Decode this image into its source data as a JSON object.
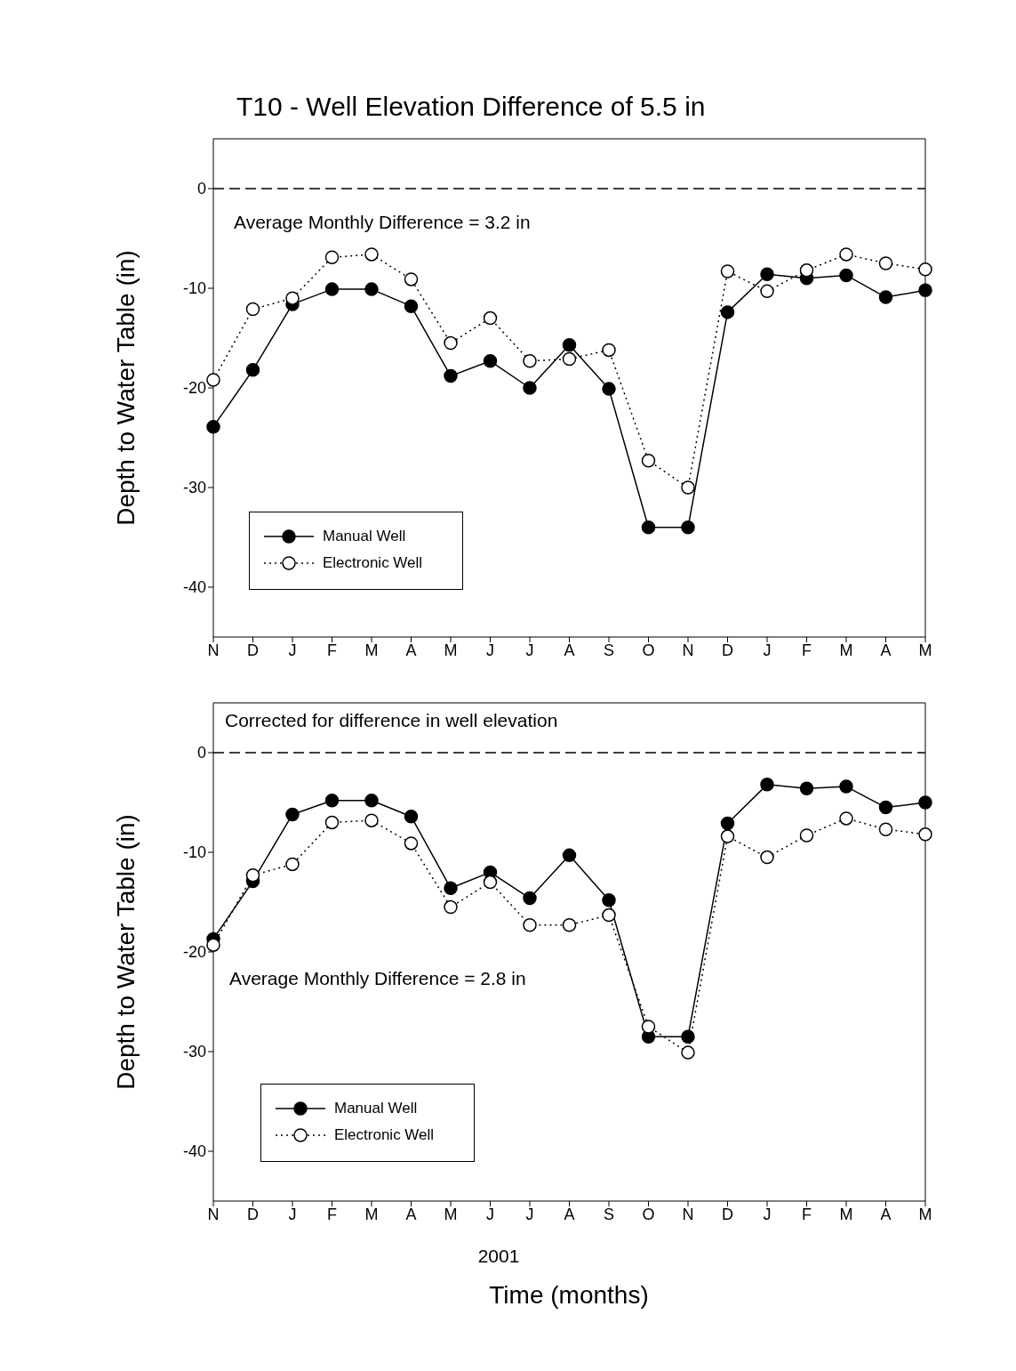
{
  "chart_data": [
    {
      "type": "line",
      "title": "T10 - Well Elevation Difference of 5.5 in",
      "ylabel": "Depth to Water Table (in)",
      "categories": [
        "N",
        "D",
        "J",
        "F",
        "M",
        "A",
        "M",
        "J",
        "J",
        "A",
        "S",
        "O",
        "N",
        "D",
        "J",
        "F",
        "M",
        "A",
        "M"
      ],
      "series": [
        {
          "name": "Manual Well",
          "color": "#000000",
          "line_style": "solid",
          "values": [
            -23.9,
            -18.2,
            -11.6,
            -10.1,
            -10.1,
            -11.8,
            -18.8,
            -17.3,
            -20.0,
            -15.7,
            -20.1,
            -34,
            -34,
            -12.4,
            -8.6,
            -9.0,
            -8.7,
            -10.9,
            -10.2
          ]
        },
        {
          "name": "Electronic Well",
          "color": "#000000",
          "line_style": "dotted",
          "values": [
            -19.2,
            -12.1,
            -11.0,
            -6.9,
            -6.6,
            -9.1,
            -15.5,
            -13.0,
            -17.3,
            -17.1,
            -16.2,
            -27.3,
            -30.0,
            -8.3,
            -10.3,
            -8.2,
            -6.6,
            -7.5,
            -8.1
          ]
        }
      ],
      "ylim": [
        -45,
        5
      ],
      "yticks": [
        0,
        -10,
        -20,
        -30,
        -40
      ],
      "grid": false,
      "legend": "bottom left",
      "marker": "circle",
      "ref_lines": [
        {
          "axis": "y",
          "value": 0,
          "line_style": "dashed",
          "color": "#000000"
        }
      ],
      "annotations": [
        "Average Monthly Difference = 3.2 in"
      ]
    },
    {
      "type": "line",
      "ylabel": "Depth to Water Table (in)",
      "xlabel": "Time (months)",
      "categories": [
        "N",
        "D",
        "J",
        "F",
        "M",
        "A",
        "M",
        "J",
        "J",
        "A",
        "S",
        "O",
        "N",
        "D",
        "J",
        "F",
        "M",
        "A",
        "M"
      ],
      "series": [
        {
          "name": "Manual Well",
          "color": "#000000",
          "line_style": "solid",
          "values": [
            -18.7,
            -12.9,
            -6.2,
            -4.8,
            -4.8,
            -6.4,
            -13.6,
            -12.0,
            -14.6,
            -10.3,
            -14.8,
            -28.5,
            -28.5,
            -7.1,
            -3.2,
            -3.6,
            -3.4,
            -5.5,
            -5.0
          ]
        },
        {
          "name": "Electronic Well",
          "color": "#000000",
          "line_style": "dotted",
          "values": [
            -19.3,
            -12.3,
            -11.2,
            -7.0,
            -6.8,
            -9.1,
            -15.5,
            -13.0,
            -17.3,
            -17.3,
            -16.3,
            -27.5,
            -30.1,
            -8.4,
            -10.5,
            -8.3,
            -6.6,
            -7.7,
            -8.2
          ]
        }
      ],
      "ylim": [
        -45,
        5
      ],
      "yticks": [
        0,
        -10,
        -20,
        -30,
        -40
      ],
      "grid": false,
      "legend": "bottom left",
      "marker": "circle",
      "ref_lines": [
        {
          "axis": "y",
          "value": 0,
          "line_style": "dashed",
          "color": "#000000"
        }
      ],
      "annotations": [
        "Corrected for difference in well elevation",
        "Average Monthly Difference = 2.8 in",
        "2001"
      ]
    }
  ]
}
